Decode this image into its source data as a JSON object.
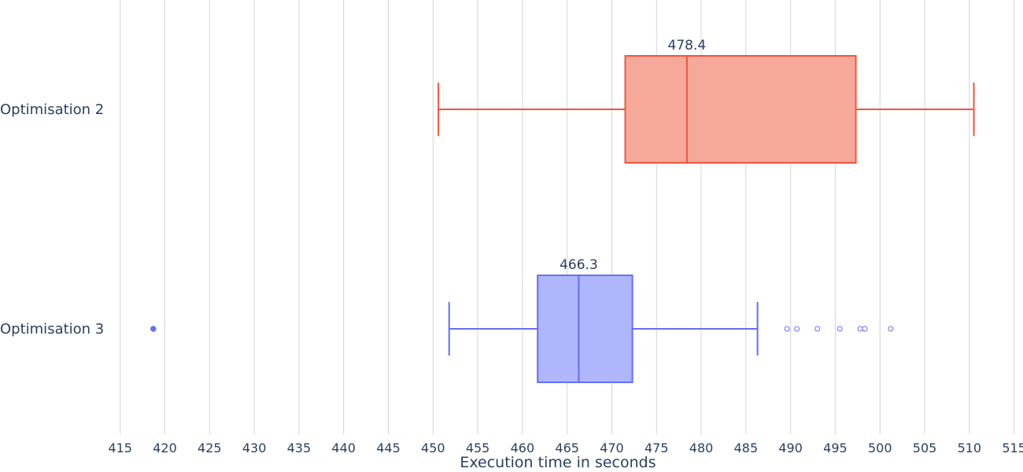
{
  "chart_data": {
    "type": "box",
    "orientation": "horizontal",
    "title": "",
    "xlabel": "Execution time in seconds",
    "ylabel": "",
    "xlim": [
      413,
      516
    ],
    "xticks": [
      415,
      420,
      425,
      430,
      435,
      440,
      445,
      450,
      455,
      460,
      465,
      470,
      475,
      480,
      485,
      490,
      495,
      500,
      505,
      510,
      515
    ],
    "grid": "vertical",
    "series": [
      {
        "name": "Optimisation 2",
        "color": "#EF553B",
        "fill": "#F6A99B",
        "whisker_low": 450.6,
        "q1": 471.5,
        "median": 478.4,
        "q3": 497.3,
        "whisker_high": 510.5,
        "outliers": [],
        "median_label": "478.4"
      },
      {
        "name": "Optimisation 3",
        "color": "#636EFA",
        "fill": "#B0B6FC",
        "whisker_low": 451.8,
        "q1": 461.7,
        "median": 466.3,
        "q3": 472.3,
        "whisker_high": 486.3,
        "outliers": [
          418.7,
          489.6,
          490.7,
          493.0,
          495.5,
          497.8,
          498.3,
          501.2
        ],
        "filled_outliers": [
          418.7
        ],
        "median_label": "466.3"
      }
    ]
  }
}
